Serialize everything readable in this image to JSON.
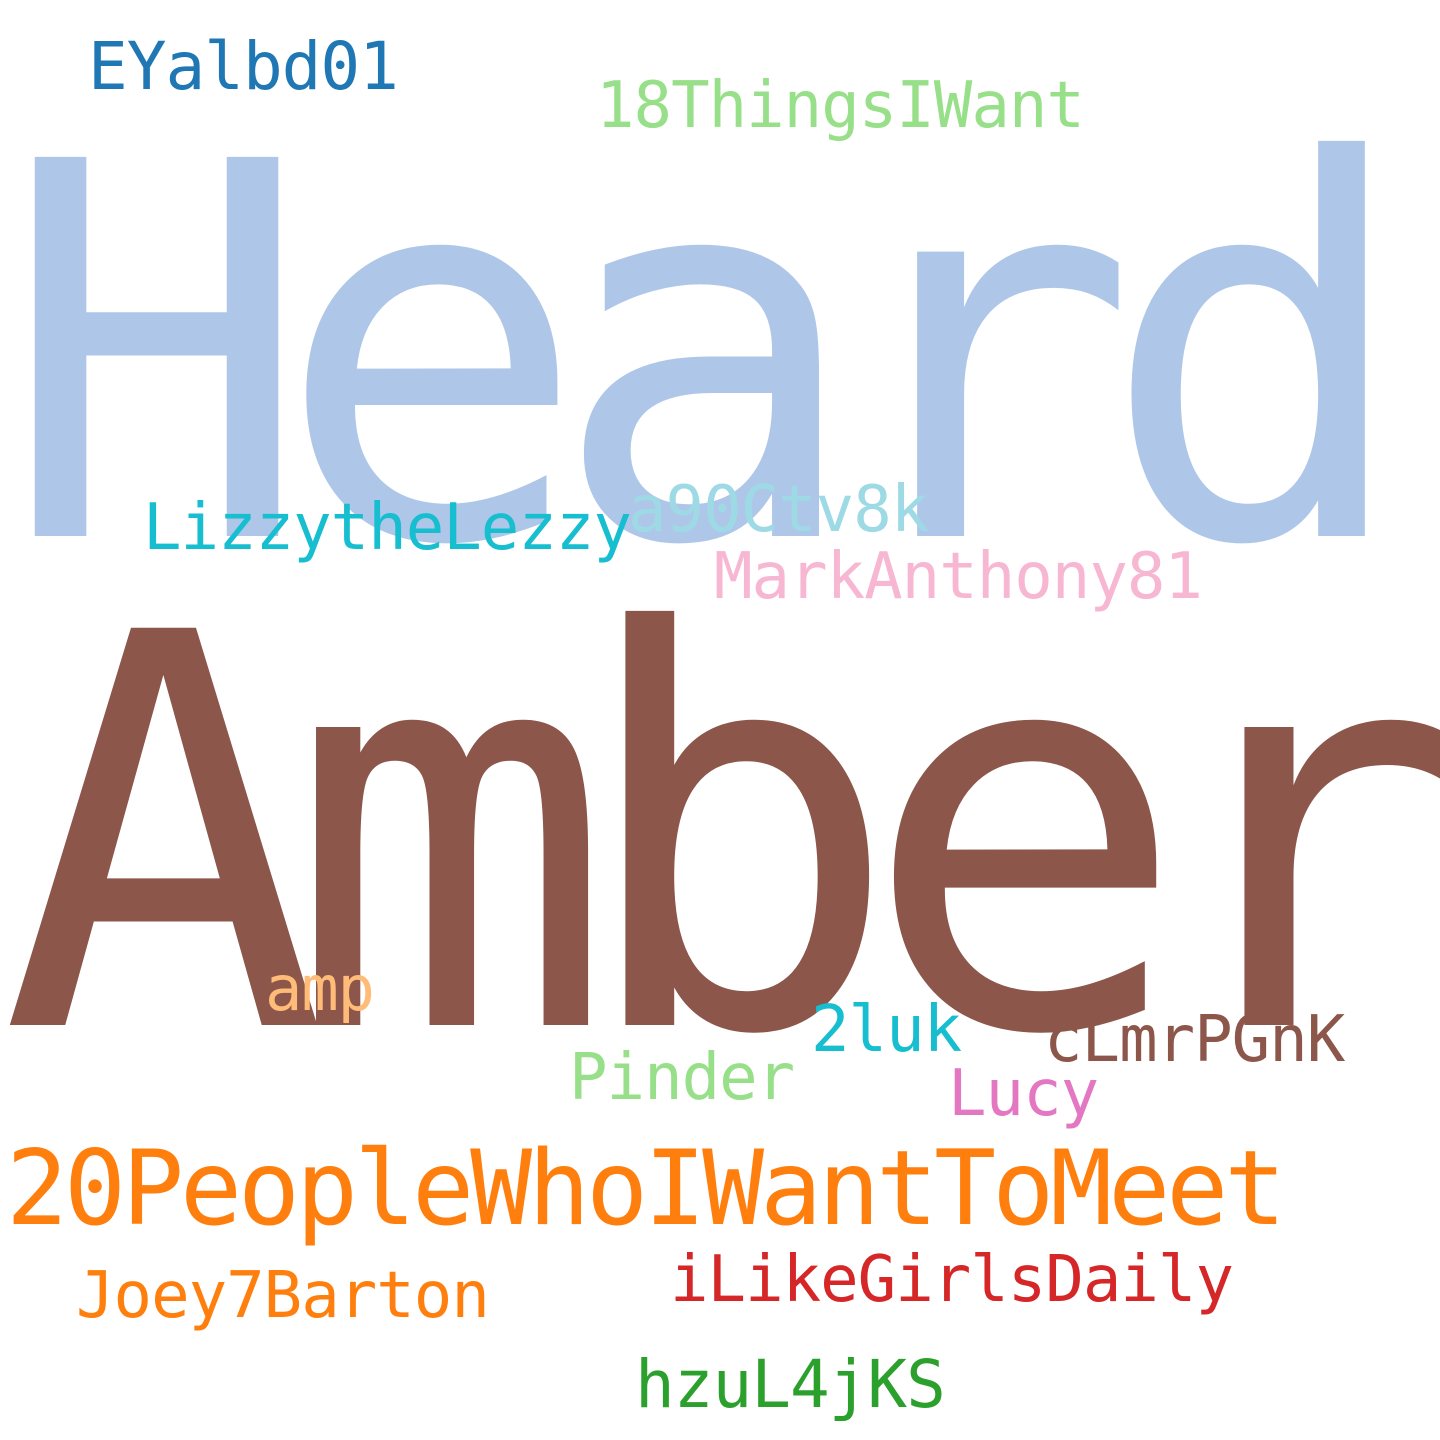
{
  "words": [
    {
      "id": "heard",
      "text": "Heard",
      "color": "#aec7e8"
    },
    {
      "id": "amber",
      "text": "Amber",
      "color": "#8c564b"
    },
    {
      "id": "20people",
      "text": "20PeopleWhoIWantToMeet",
      "color": "#ff7f0e"
    },
    {
      "id": "eyalbd",
      "text": "EYalbd01",
      "color": "#1f77b4"
    },
    {
      "id": "18things",
      "text": "18ThingsIWant",
      "color": "#98df8a"
    },
    {
      "id": "lizzy",
      "text": "LizzytheLezzy",
      "color": "#17becf"
    },
    {
      "id": "a90",
      "text": "a90Ctv8k",
      "color": "#9edae5"
    },
    {
      "id": "mark",
      "text": "MarkAnthony81",
      "color": "#f7b6d2"
    },
    {
      "id": "amp",
      "text": "amp",
      "color": "#ffbb78"
    },
    {
      "id": "2luk",
      "text": "2luk",
      "color": "#17becf"
    },
    {
      "id": "clmr",
      "text": "cLmrPGnK",
      "color": "#8c564b"
    },
    {
      "id": "pinder",
      "text": "Pinder",
      "color": "#98df8a"
    },
    {
      "id": "lucy",
      "text": "Lucy",
      "color": "#e377c2"
    },
    {
      "id": "ilikegirls",
      "text": "iLikeGirlsDaily",
      "color": "#d62728"
    },
    {
      "id": "joey",
      "text": "Joey7Barton",
      "color": "#ff7f0e"
    },
    {
      "id": "hzul",
      "text": "hzuL4jKS",
      "color": "#2ca02c"
    }
  ]
}
